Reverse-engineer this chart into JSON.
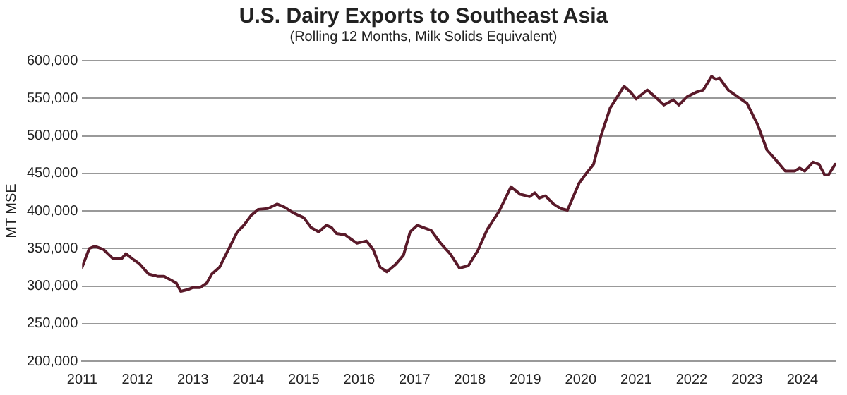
{
  "chart_data": {
    "type": "line",
    "title": "U.S. Dairy Exports to Southeast Asia",
    "subtitle": "(Rolling 12 Months, Milk Solids Equivalent)",
    "ylabel": "MT MSE",
    "x": [
      2011.0,
      2011.13,
      2011.23,
      2011.38,
      2011.55,
      2011.72,
      2011.79,
      2011.93,
      2012.03,
      2012.2,
      2012.36,
      2012.48,
      2012.7,
      2012.78,
      2012.9,
      2013.0,
      2013.13,
      2013.25,
      2013.34,
      2013.48,
      2013.63,
      2013.8,
      2013.92,
      2014.05,
      2014.18,
      2014.35,
      2014.52,
      2014.65,
      2014.82,
      2015.0,
      2015.13,
      2015.27,
      2015.41,
      2015.5,
      2015.59,
      2015.75,
      2015.96,
      2016.13,
      2016.25,
      2016.38,
      2016.5,
      2016.66,
      2016.8,
      2016.92,
      2017.05,
      2017.15,
      2017.3,
      2017.47,
      2017.64,
      2017.81,
      2017.97,
      2018.14,
      2018.31,
      2018.53,
      2018.74,
      2018.91,
      2019.08,
      2019.17,
      2019.25,
      2019.36,
      2019.51,
      2019.64,
      2019.76,
      2019.97,
      2020.1,
      2020.23,
      2020.36,
      2020.53,
      2020.66,
      2020.78,
      2020.9,
      2021.0,
      2021.2,
      2021.37,
      2021.5,
      2021.67,
      2021.77,
      2021.92,
      2022.08,
      2022.21,
      2022.36,
      2022.44,
      2022.5,
      2022.66,
      2022.83,
      2023.0,
      2023.19,
      2023.36,
      2023.53,
      2023.69,
      2023.86,
      2023.95,
      2024.04,
      2024.19,
      2024.3,
      2024.4,
      2024.47,
      2024.59
    ],
    "series": [
      {
        "color": "#5a1a2a",
        "values": [
          325000,
          350000,
          353000,
          349000,
          337000,
          337000,
          343000,
          335000,
          330000,
          316000,
          313000,
          313000,
          304000,
          293000,
          295000,
          298000,
          298000,
          304000,
          316000,
          325000,
          347000,
          372000,
          381000,
          394000,
          402000,
          403000,
          409000,
          405000,
          397000,
          391000,
          378000,
          372000,
          381000,
          378000,
          370000,
          368000,
          357000,
          360000,
          349000,
          325000,
          319000,
          329000,
          341000,
          372000,
          381000,
          378000,
          374000,
          357000,
          343000,
          324000,
          327000,
          347000,
          375000,
          400000,
          432000,
          422000,
          419000,
          424000,
          417000,
          420000,
          409000,
          403000,
          401000,
          437000,
          450000,
          462000,
          499000,
          537000,
          552000,
          566000,
          558000,
          549000,
          561000,
          550000,
          541000,
          548000,
          541000,
          552000,
          558000,
          561000,
          579000,
          575000,
          577000,
          561000,
          552000,
          543000,
          515000,
          481000,
          467000,
          453000,
          453000,
          457000,
          453000,
          465000,
          462000,
          448000,
          448000,
          462000
        ]
      }
    ],
    "xlim": [
      2011,
      2024.6
    ],
    "xticks": [
      2011,
      2012,
      2013,
      2014,
      2015,
      2016,
      2017,
      2018,
      2019,
      2020,
      2021,
      2022,
      2023,
      2024
    ],
    "ylim": [
      200000,
      600000
    ],
    "yticks": [
      {
        "value": 200000,
        "label": "200,000"
      },
      {
        "value": 250000,
        "label": "250,000"
      },
      {
        "value": 300000,
        "label": "300,000"
      },
      {
        "value": 350000,
        "label": "350,000"
      },
      {
        "value": 400000,
        "label": "400,000"
      },
      {
        "value": 450000,
        "label": "450,000"
      },
      {
        "value": 500000,
        "label": "500,000"
      },
      {
        "value": 550000,
        "label": "550,000"
      },
      {
        "value": 600000,
        "label": "600,000"
      }
    ],
    "grid": "y",
    "legend": false,
    "marker": "none",
    "line_style": "solid"
  }
}
